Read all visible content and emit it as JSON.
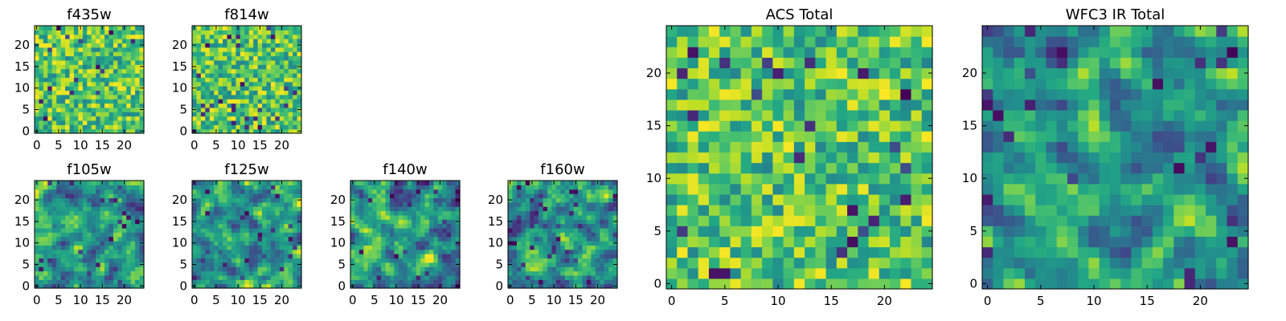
{
  "chart_data": [
    {
      "type": "heatmap",
      "title": "f435w",
      "size": 25,
      "xlim": [
        -0.5,
        24.5
      ],
      "ylim": [
        -0.5,
        24.5
      ],
      "xticks": [
        0,
        5,
        10,
        15,
        20
      ],
      "yticks": [
        0,
        5,
        10,
        15,
        20
      ],
      "colormap": "viridis",
      "vmin": 0,
      "vmax": 1,
      "seed": 11,
      "smooth": 0
    },
    {
      "type": "heatmap",
      "title": "f814w",
      "size": 25,
      "xlim": [
        -0.5,
        24.5
      ],
      "ylim": [
        -0.5,
        24.5
      ],
      "xticks": [
        0,
        5,
        10,
        15,
        20
      ],
      "yticks": [
        0,
        5,
        10,
        15,
        20
      ],
      "colormap": "viridis",
      "vmin": 0,
      "vmax": 1,
      "seed": 23,
      "smooth": 0
    },
    {
      "type": "heatmap",
      "title": "f105w",
      "size": 25,
      "xlim": [
        -0.5,
        24.5
      ],
      "ylim": [
        -0.5,
        24.5
      ],
      "xticks": [
        0,
        5,
        10,
        15,
        20
      ],
      "yticks": [
        0,
        5,
        10,
        15,
        20
      ],
      "colormap": "viridis",
      "vmin": 0,
      "vmax": 1,
      "seed": 37,
      "smooth": 1
    },
    {
      "type": "heatmap",
      "title": "f125w",
      "size": 25,
      "xlim": [
        -0.5,
        24.5
      ],
      "ylim": [
        -0.5,
        24.5
      ],
      "xticks": [
        0,
        5,
        10,
        15,
        20
      ],
      "yticks": [
        0,
        5,
        10,
        15,
        20
      ],
      "colormap": "viridis",
      "vmin": 0,
      "vmax": 1,
      "seed": 41,
      "smooth": 1
    },
    {
      "type": "heatmap",
      "title": "f140w",
      "size": 25,
      "xlim": [
        -0.5,
        24.5
      ],
      "ylim": [
        -0.5,
        24.5
      ],
      "xticks": [
        0,
        5,
        10,
        15,
        20
      ],
      "yticks": [
        0,
        5,
        10,
        15,
        20
      ],
      "colormap": "viridis",
      "vmin": 0,
      "vmax": 1,
      "seed": 53,
      "smooth": 1
    },
    {
      "type": "heatmap",
      "title": "f160w",
      "size": 25,
      "xlim": [
        -0.5,
        24.5
      ],
      "ylim": [
        -0.5,
        24.5
      ],
      "xticks": [
        0,
        5,
        10,
        15,
        20
      ],
      "yticks": [
        0,
        5,
        10,
        15,
        20
      ],
      "colormap": "viridis",
      "vmin": 0,
      "vmax": 1,
      "seed": 67,
      "smooth": 1
    },
    {
      "type": "heatmap",
      "title": "ACS Total",
      "size": 25,
      "xlim": [
        -0.5,
        24.5
      ],
      "ylim": [
        -0.5,
        24.5
      ],
      "xticks": [
        0,
        5,
        10,
        15,
        20
      ],
      "yticks": [
        0,
        5,
        10,
        15,
        20
      ],
      "colormap": "viridis",
      "vmin": 0,
      "vmax": 1,
      "seed": 71,
      "smooth": 0
    },
    {
      "type": "heatmap",
      "title": "WFC3 IR Total",
      "size": 25,
      "xlim": [
        -0.5,
        24.5
      ],
      "ylim": [
        -0.5,
        24.5
      ],
      "xticks": [
        0,
        5,
        10,
        15,
        20
      ],
      "yticks": [
        0,
        5,
        10,
        15,
        20
      ],
      "colormap": "viridis",
      "vmin": 0,
      "vmax": 1,
      "seed": 89,
      "smooth": 1
    }
  ]
}
